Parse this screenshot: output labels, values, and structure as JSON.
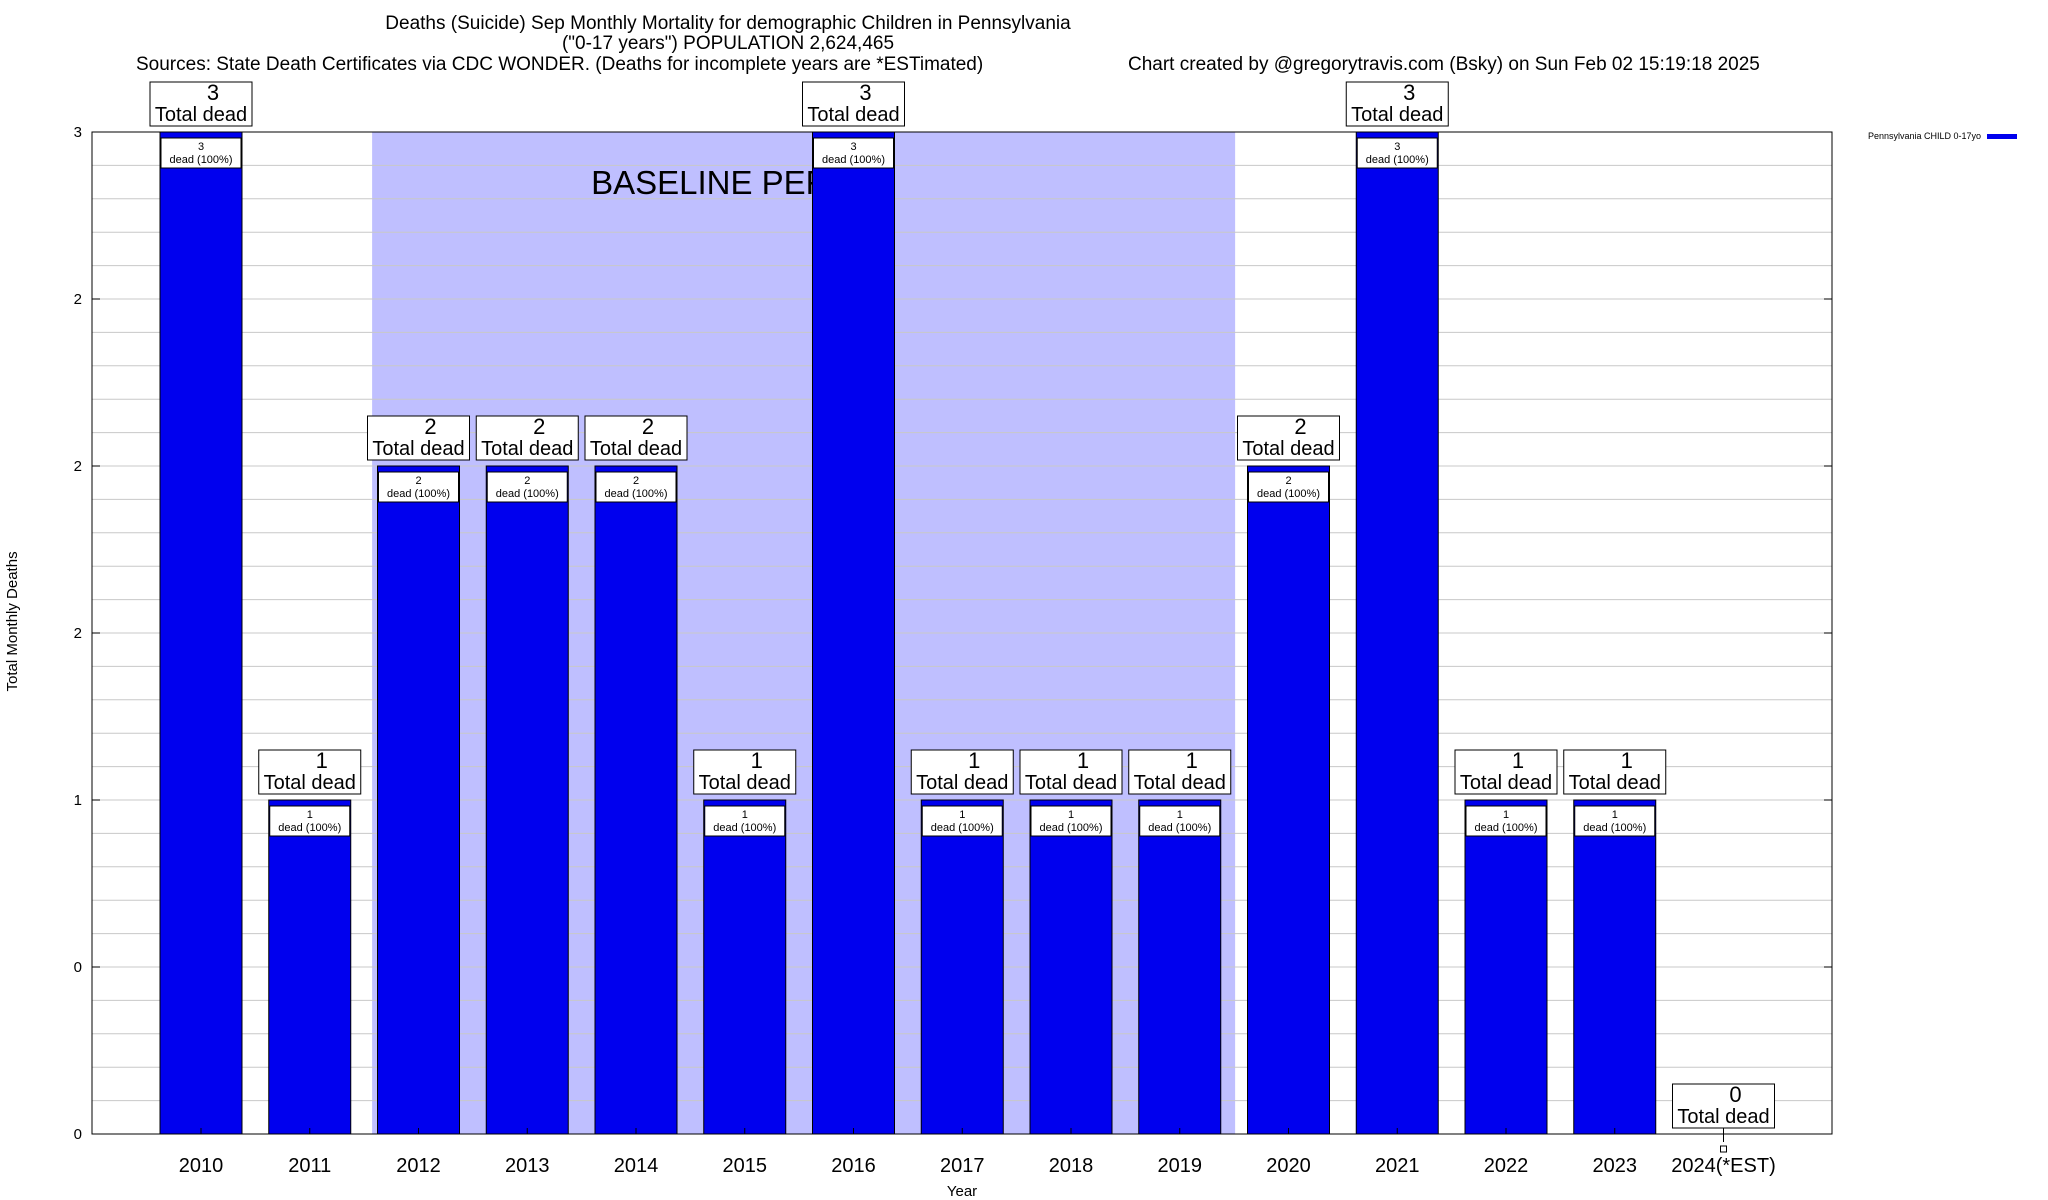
{
  "title_line1": "Deaths (Suicide) Sep Monthly Mortality for demographic Children in Pennsylvania",
  "title_line2": "(\"0-17 years\") POPULATION 2,624,465",
  "sources": "Sources: State Death Certificates via CDC WONDER. (Deaths for incomplete years are *ESTimated)",
  "credit": "Chart created by @gregorytravis.com (Bsky) on Sun Feb 02 15:19:18 2025",
  "colors": {
    "bar": "#0000ee",
    "baseline_shade": "#bfbfff",
    "grid": "#c8c8c8"
  },
  "chart_data": {
    "type": "bar",
    "xlabel": "Year",
    "ylabel": "Total Monthly Deaths",
    "ylim": [
      0,
      3
    ],
    "y_tick_labels": [
      "0",
      "0",
      "1",
      "2",
      "2",
      "2",
      "3"
    ],
    "grid": true,
    "legend": {
      "position": "top-right",
      "entries": [
        "Pennsylvania CHILD 0-17yo"
      ]
    },
    "categories": [
      "2010",
      "2011",
      "2012",
      "2013",
      "2014",
      "2015",
      "2016",
      "2017",
      "2018",
      "2019",
      "2020",
      "2021",
      "2022",
      "2023",
      "2024(*EST)"
    ],
    "series": [
      {
        "name": "Pennsylvania CHILD 0-17yo",
        "values": [
          3,
          1,
          2,
          2,
          2,
          1,
          3,
          1,
          1,
          1,
          2,
          3,
          1,
          1,
          0
        ]
      }
    ],
    "total_labels": [
      "3",
      "1",
      "2",
      "2",
      "2",
      "1",
      "3",
      "1",
      "1",
      "1",
      "2",
      "3",
      "1",
      "1",
      "0"
    ],
    "total_label_suffix": "Total dead",
    "inner_labels": [
      "3",
      "1",
      "2",
      "2",
      "2",
      "1",
      "3",
      "1",
      "1",
      "1",
      "2",
      "3",
      "1",
      "1",
      ""
    ],
    "inner_label_suffix": "dead (100%)",
    "baseline_period": {
      "label": "BASELINE PERIOD",
      "from": "2012",
      "to": "2019"
    }
  }
}
